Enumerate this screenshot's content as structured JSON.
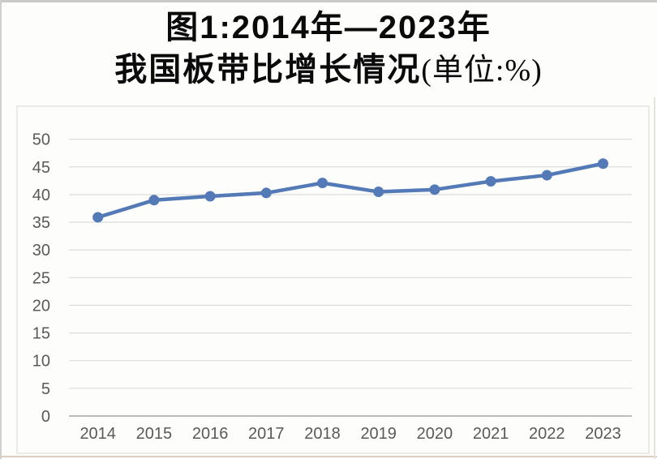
{
  "title": {
    "line1": "图1:2014年—2023年",
    "line2_main": "我国板带比增长情况",
    "line2_unit": "(单位:%)"
  },
  "chart_data": {
    "type": "line",
    "title": "图1:2014年—2023年 我国板带比增长情况(单位:%)",
    "categories": [
      "2014",
      "2015",
      "2016",
      "2017",
      "2018",
      "2019",
      "2020",
      "2021",
      "2022",
      "2023"
    ],
    "values": [
      35.9,
      39.0,
      39.7,
      40.3,
      42.1,
      40.5,
      40.9,
      42.4,
      43.5,
      45.6
    ],
    "xlabel": "",
    "ylabel": "",
    "unit": "%",
    "ylim": [
      0,
      50
    ],
    "yticks": [
      0,
      5,
      10,
      15,
      20,
      25,
      30,
      35,
      40,
      45,
      50
    ],
    "grid": true,
    "legend": false,
    "marker": "circle",
    "line_color": "#537ab7",
    "marker_color": "#537ab7",
    "gridline_color": "#d9d9d9",
    "axis_line_color": "#b3b3b3",
    "tick_label_color": "#595959",
    "chart_border_color": "#e4e4e4"
  }
}
